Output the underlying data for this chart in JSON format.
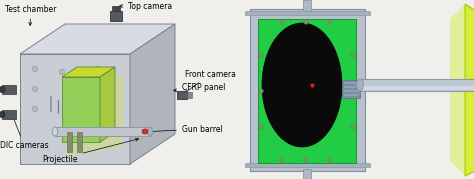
{
  "bg_color": "#f0efeb",
  "labels": {
    "test_chamber": "Test chamber",
    "top_camera": "Top camera",
    "front_camera": "Front camera",
    "cfrp_panel": "CFRP panel",
    "gun_barrel": "Gun barrel",
    "dic_cameras": "DIC cameras",
    "projectile": "Projectile"
  },
  "font_size": 5.5,
  "left": {
    "box_front_color": "#c8cdd4",
    "box_top_color": "#d8dce2",
    "box_side_color": "#b0b5bc",
    "box_edge": "#7a8090",
    "panel_green": "#8ecf50",
    "panel_yellow": "#c8d830",
    "laser_yellow": "#d8e840",
    "barrel_color": "#c0c4cc",
    "camera_color": "#555a62",
    "hole_color": "#b0b4ba"
  },
  "right": {
    "frame_color": "#b8c0cc",
    "frame_edge": "#8090a0",
    "green_panel": "#22cc44",
    "green_edge": "#119933",
    "black_oval": "#0a0a0a",
    "red_dot": "#dd2020",
    "barrel_body": "#c0c8d4",
    "barrel_edge": "#8898aa",
    "yellow_sheet": "#ccee00",
    "bolt_color": "#889090"
  }
}
